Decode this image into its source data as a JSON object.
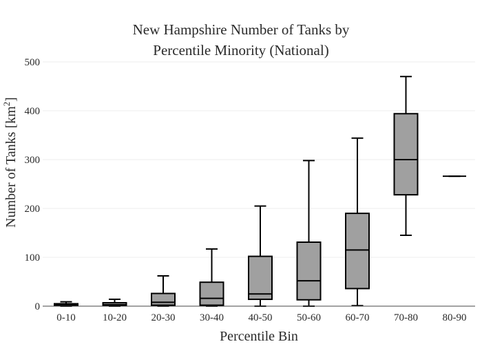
{
  "chart_data": {
    "type": "box",
    "title_lines": [
      "New Hampshire Number of Tanks by",
      "Percentile Minority (National)"
    ],
    "xlabel": "Percentile Bin",
    "ylabel": "Number of Tanks  [km",
    "ylabel_sup": "2",
    "ylabel_close": "]",
    "ylim": [
      0,
      500
    ],
    "yticks": [
      0,
      100,
      200,
      300,
      400,
      500
    ],
    "grid": true,
    "box_color": "#a0a0a0",
    "categories": [
      "0-10",
      "10-20",
      "20-30",
      "30-40",
      "40-50",
      "50-60",
      "60-70",
      "70-80",
      "80-90"
    ],
    "boxes": [
      {
        "category": "0-10",
        "min": 0,
        "q1": 1,
        "median": 3,
        "q3": 5,
        "max": 9
      },
      {
        "category": "10-20",
        "min": 0,
        "q1": 1,
        "median": 3,
        "q3": 7,
        "max": 14
      },
      {
        "category": "20-30",
        "min": 0,
        "q1": 2,
        "median": 8,
        "q3": 26,
        "max": 62
      },
      {
        "category": "30-40",
        "min": 0,
        "q1": 2,
        "median": 16,
        "q3": 49,
        "max": 117
      },
      {
        "category": "40-50",
        "min": 0,
        "q1": 14,
        "median": 25,
        "q3": 102,
        "max": 205
      },
      {
        "category": "50-60",
        "min": 0,
        "q1": 13,
        "median": 52,
        "q3": 131,
        "max": 298
      },
      {
        "category": "60-70",
        "min": 1,
        "q1": 36,
        "median": 115,
        "q3": 190,
        "max": 344
      },
      {
        "category": "70-80",
        "min": 145,
        "q1": 228,
        "median": 300,
        "q3": 394,
        "max": 470
      },
      {
        "category": "80-90",
        "min": 266,
        "q1": 266,
        "median": 266,
        "q3": 266,
        "max": 266
      }
    ]
  }
}
